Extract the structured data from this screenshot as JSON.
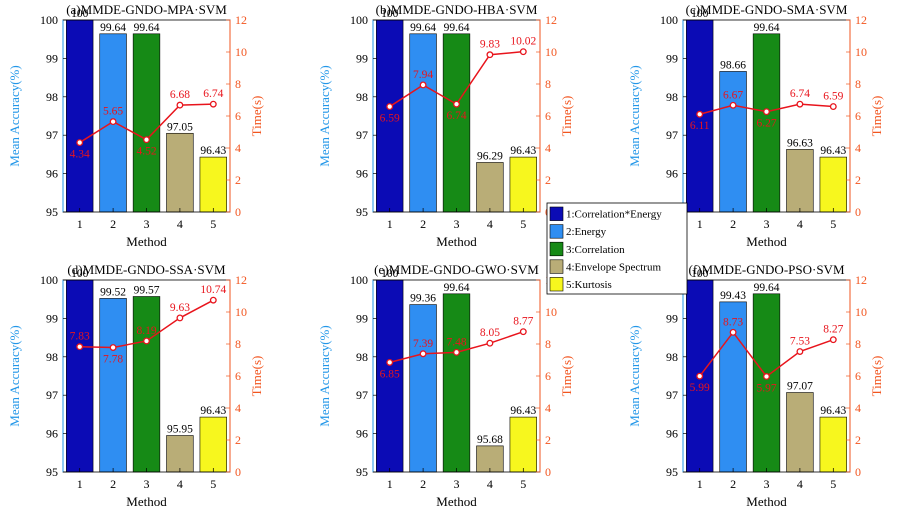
{
  "figure": {
    "categories": [
      "1",
      "2",
      "3",
      "4",
      "5"
    ],
    "xlabel": "Method",
    "ylabel": "Mean Accuracy(%)",
    "y2label": "Time(s)",
    "bar_colors": [
      "#0b0bb5",
      "#2f8ef2",
      "#168a16",
      "#b9ad77",
      "#f7f71e"
    ],
    "left_axis_color": "#2196e8",
    "right_axis_color": "#f2551f",
    "line_color": "#e8141c"
  },
  "legend": [
    "1:Correlation*Energy",
    "2:Energy",
    "3:Correlation",
    "4:Envelope Spectrum",
    "5:Kurtosis"
  ],
  "chart_data": [
    {
      "type": "bar",
      "title": "(a)MMDE-GNDO-MPA·SVM",
      "categories": [
        "1",
        "2",
        "3",
        "4",
        "5"
      ],
      "series": [
        {
          "name": "Mean Accuracy(%)",
          "values": [
            100,
            99.64,
            99.64,
            97.05,
            96.43
          ],
          "labels": [
            "100",
            "99.64",
            "99.64",
            "97.05",
            "96.43"
          ]
        },
        {
          "name": "Time(s)",
          "type": "line",
          "values": [
            4.34,
            5.65,
            4.52,
            6.68,
            6.74
          ],
          "labels": [
            "4.34",
            "5.65",
            "4.52",
            "6.68",
            "6.74"
          ]
        }
      ],
      "xlabel": "Method",
      "ylabel": "Mean Accuracy(%)",
      "y2label": "Time(s)",
      "ylim": [
        95,
        100
      ],
      "y2lim": [
        0,
        12
      ],
      "yticks": [
        "95",
        "96",
        "97",
        "98",
        "99",
        "100"
      ],
      "y2ticks": [
        "0",
        "2",
        "4",
        "6",
        "8",
        "10",
        "12"
      ]
    },
    {
      "type": "bar",
      "title": "(b)MMDE-GNDO-HBA·SVM",
      "categories": [
        "1",
        "2",
        "3",
        "4",
        "5"
      ],
      "series": [
        {
          "name": "Mean Accuracy(%)",
          "values": [
            100,
            99.64,
            99.64,
            96.29,
            96.43
          ],
          "labels": [
            "100",
            "99.64",
            "99.64",
            "96.29",
            "96.43"
          ]
        },
        {
          "name": "Time(s)",
          "type": "line",
          "values": [
            6.59,
            7.94,
            6.74,
            9.83,
            10.02
          ],
          "labels": [
            "6.59",
            "7.94",
            "6.74",
            "9.83",
            "10.02"
          ]
        }
      ],
      "xlabel": "Method",
      "ylabel": "Mean Accuracy(%)",
      "y2label": "Time(s)",
      "ylim": [
        95,
        100
      ],
      "y2lim": [
        0,
        12
      ],
      "yticks": [
        "95",
        "96",
        "97",
        "98",
        "99",
        "100"
      ],
      "y2ticks": [
        "0",
        "2",
        "4",
        "6",
        "8",
        "10",
        "12"
      ]
    },
    {
      "type": "bar",
      "title": "(c)MMDE-GNDO-SMA·SVM",
      "categories": [
        "1",
        "2",
        "3",
        "4",
        "5"
      ],
      "series": [
        {
          "name": "Mean Accuracy(%)",
          "values": [
            100,
            98.66,
            99.64,
            96.63,
            96.43
          ],
          "labels": [
            "100",
            "98.66",
            "99.64",
            "96.63",
            "96.43"
          ]
        },
        {
          "name": "Time(s)",
          "type": "line",
          "values": [
            6.11,
            6.67,
            6.27,
            6.74,
            6.59
          ],
          "labels": [
            "6.11",
            "6.67",
            "6.27",
            "6.74",
            "6.59"
          ]
        }
      ],
      "xlabel": "Method",
      "ylabel": "Mean Accuracy(%)",
      "y2label": "Time(s)",
      "ylim": [
        95,
        100
      ],
      "y2lim": [
        0,
        12
      ],
      "yticks": [
        "95",
        "96",
        "97",
        "98",
        "99",
        "100"
      ],
      "y2ticks": [
        "0",
        "2",
        "4",
        "6",
        "8",
        "10",
        "12"
      ]
    },
    {
      "type": "bar",
      "title": "(d)MMDE-GNDO-SSA·SVM",
      "categories": [
        "1",
        "2",
        "3",
        "4",
        "5"
      ],
      "series": [
        {
          "name": "Mean Accuracy(%)",
          "values": [
            100,
            99.52,
            99.57,
            95.95,
            96.43
          ],
          "labels": [
            "100",
            "99.52",
            "99.57",
            "95.95",
            "96.43"
          ]
        },
        {
          "name": "Time(s)",
          "type": "line",
          "values": [
            7.83,
            7.78,
            8.19,
            9.63,
            10.74
          ],
          "labels": [
            "7.83",
            "7.78",
            "8.19",
            "9.63",
            "10.74"
          ]
        }
      ],
      "xlabel": "Method",
      "ylabel": "Mean Accuracy(%)",
      "y2label": "Time(s)",
      "ylim": [
        95,
        100
      ],
      "y2lim": [
        0,
        12
      ],
      "yticks": [
        "95",
        "96",
        "97",
        "98",
        "99",
        "100"
      ],
      "y2ticks": [
        "0",
        "2",
        "4",
        "6",
        "8",
        "10",
        "12"
      ]
    },
    {
      "type": "bar",
      "title": "(e)MMDE-GNDO-GWO·SVM",
      "categories": [
        "1",
        "2",
        "3",
        "4",
        "5"
      ],
      "series": [
        {
          "name": "Mean Accuracy(%)",
          "values": [
            100,
            99.36,
            99.64,
            95.68,
            96.43
          ],
          "labels": [
            "100",
            "99.36",
            "99.64",
            "95.68",
            "96.43"
          ]
        },
        {
          "name": "Time(s)",
          "type": "line",
          "values": [
            6.85,
            7.39,
            7.48,
            8.05,
            8.77
          ],
          "labels": [
            "6.85",
            "7.39",
            "7.48",
            "8.05",
            "8.77"
          ]
        }
      ],
      "xlabel": "Method",
      "ylabel": "Mean Accuracy(%)",
      "y2label": "Time(s)",
      "ylim": [
        95,
        100
      ],
      "y2lim": [
        0,
        12
      ],
      "yticks": [
        "95",
        "96",
        "97",
        "98",
        "99",
        "100"
      ],
      "y2ticks": [
        "0",
        "2",
        "4",
        "6",
        "8",
        "10",
        "12"
      ]
    },
    {
      "type": "bar",
      "title": "(f)MMDE-GNDO-PSO·SVM",
      "categories": [
        "1",
        "2",
        "3",
        "4",
        "5"
      ],
      "series": [
        {
          "name": "Mean Accuracy(%)",
          "values": [
            100,
            99.43,
            99.64,
            97.07,
            96.43
          ],
          "labels": [
            "100",
            "99.43",
            "99.64",
            "97.07",
            "96.43"
          ]
        },
        {
          "name": "Time(s)",
          "type": "line",
          "values": [
            5.99,
            8.73,
            5.97,
            7.53,
            8.27
          ],
          "labels": [
            "5.99",
            "8.73",
            "5.97",
            "7.53",
            "8.27"
          ]
        }
      ],
      "xlabel": "Method",
      "ylabel": "Mean Accuracy(%)",
      "y2label": "Time(s)",
      "ylim": [
        95,
        100
      ],
      "y2lim": [
        0,
        12
      ],
      "yticks": [
        "95",
        "96",
        "97",
        "98",
        "99",
        "100"
      ],
      "y2ticks": [
        "0",
        "2",
        "4",
        "6",
        "8",
        "10",
        "12"
      ]
    }
  ]
}
